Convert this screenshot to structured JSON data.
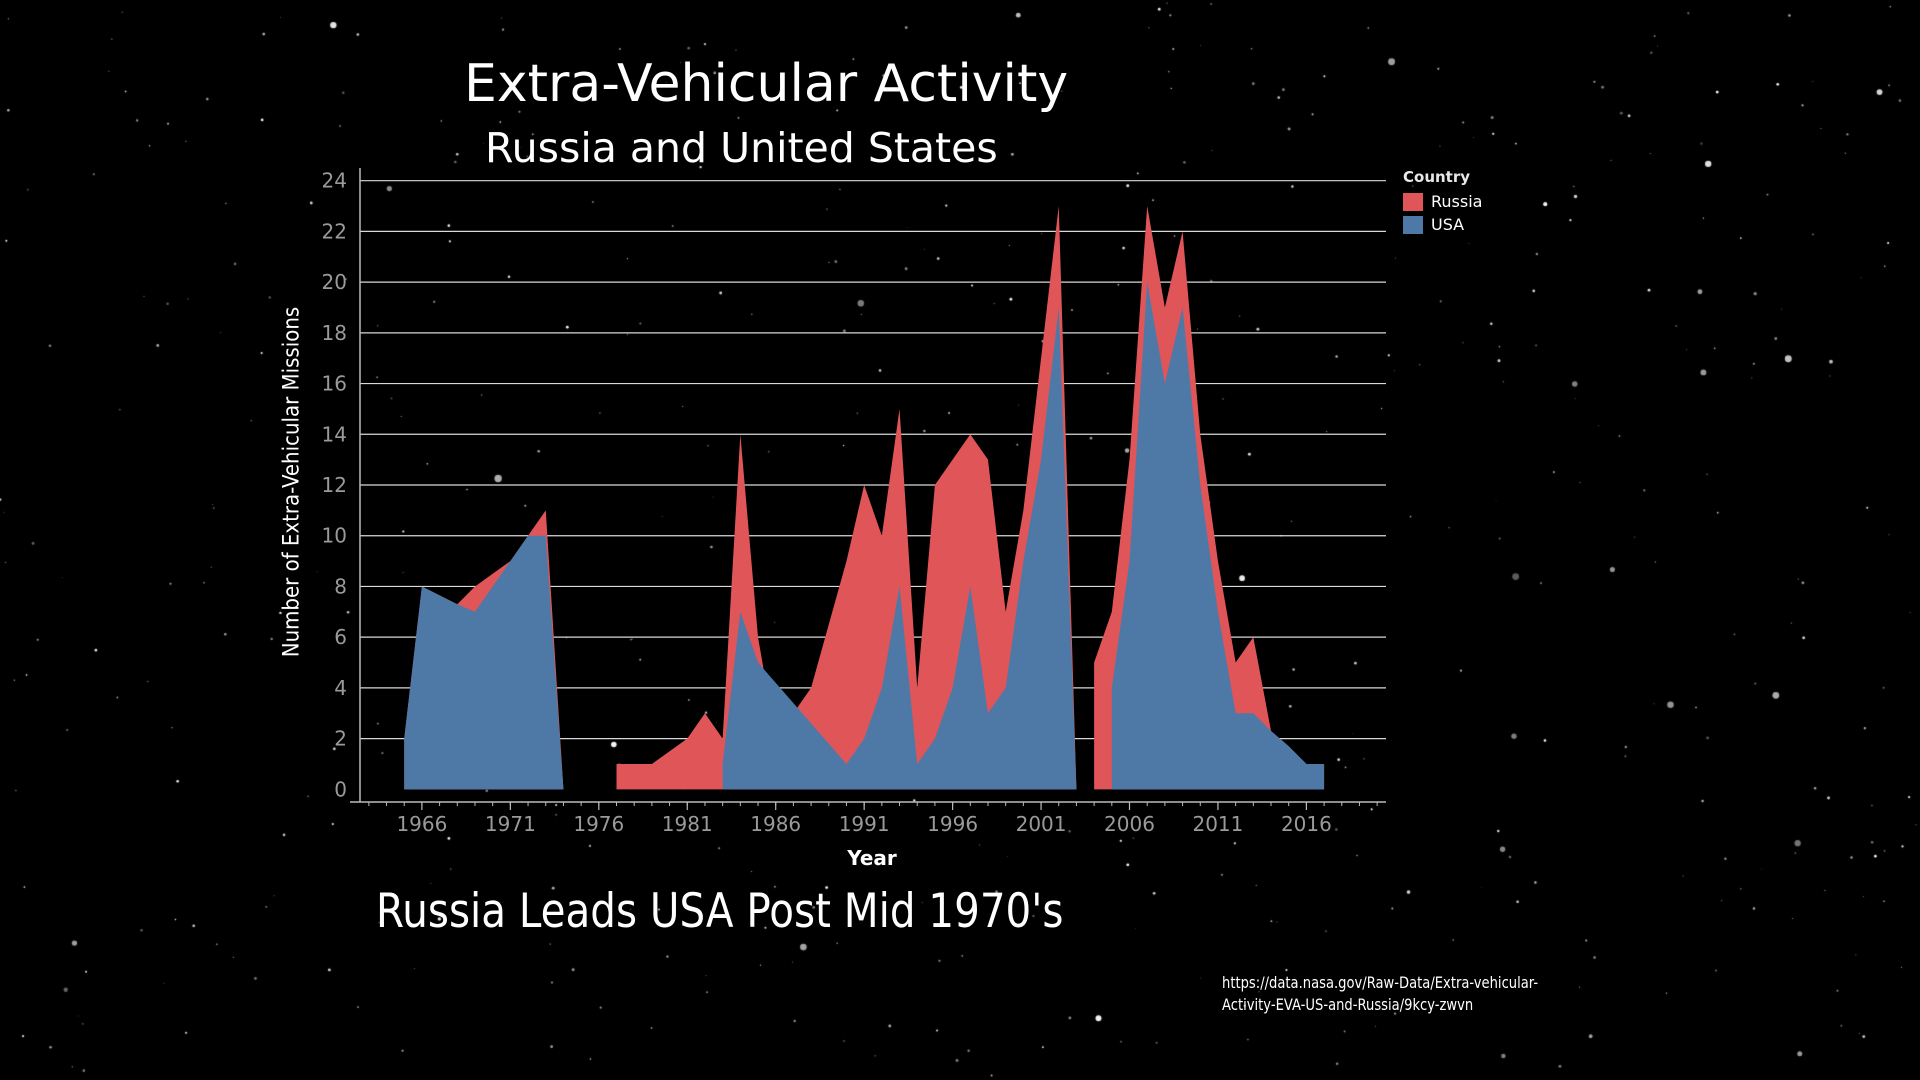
{
  "headline": "Russia Leads USA Post Mid 1970's",
  "source_line1": "https://data.nasa.gov/Raw-Data/Extra-vehicular-",
  "source_line2": "Activity-EVA-US-and-Russia/9kcy-zwvn",
  "colors": {
    "background": "#000000",
    "russia": "#e05558",
    "usa": "#4e79a7",
    "grid": "#ffffff"
  },
  "chart_data": {
    "type": "area",
    "stacked": true,
    "title": "Extra-Vehicular Activity",
    "subtitle": "Russia and United States",
    "xlabel": "Year",
    "ylabel": "Number of Extra-Vehicular Missions",
    "xlim": [
      1962.5,
      2020.5
    ],
    "ylim": [
      -0.5,
      24.5
    ],
    "x_ticks": [
      1966,
      1971,
      1976,
      1981,
      1986,
      1991,
      1996,
      2001,
      2006,
      2011,
      2016
    ],
    "y_ticks": [
      0,
      2,
      4,
      6,
      8,
      10,
      12,
      14,
      16,
      18,
      20,
      22,
      24
    ],
    "grid": "horizontal",
    "legend": {
      "title": "Country",
      "position": "top-right"
    },
    "series": [
      {
        "name": "USA",
        "points": [
          [
            1965,
            2
          ],
          [
            1966,
            8
          ],
          [
            1968,
            7.3
          ],
          [
            1969,
            7
          ],
          [
            1971,
            9
          ],
          [
            1972,
            10
          ],
          [
            1973,
            10
          ],
          [
            1974,
            0
          ],
          [
            1983,
            1
          ],
          [
            1984,
            7
          ],
          [
            1985,
            5
          ],
          [
            1990,
            1
          ],
          [
            1991,
            2
          ],
          [
            1992,
            4
          ],
          [
            1993,
            8
          ],
          [
            1994,
            1
          ],
          [
            1995,
            2
          ],
          [
            1996,
            4
          ],
          [
            1997,
            8
          ],
          [
            1998,
            3
          ],
          [
            1999,
            4
          ],
          [
            2000,
            9
          ],
          [
            2001,
            13
          ],
          [
            2002,
            19
          ],
          [
            2003,
            0
          ],
          [
            2005,
            4
          ],
          [
            2006,
            9
          ],
          [
            2007,
            20
          ],
          [
            2008,
            16
          ],
          [
            2009,
            19
          ],
          [
            2010,
            12
          ],
          [
            2011,
            7
          ],
          [
            2012,
            3
          ],
          [
            2013,
            3
          ],
          [
            2014,
            2.3
          ],
          [
            2015,
            1.7
          ],
          [
            2016,
            1
          ],
          [
            2017,
            1
          ]
        ]
      },
      {
        "name": "Russia",
        "points": [
          [
            1965,
            2
          ],
          [
            1966,
            8
          ],
          [
            1968,
            7.3
          ],
          [
            1969,
            8
          ],
          [
            1971,
            9
          ],
          [
            1972,
            10
          ],
          [
            1973,
            11
          ],
          [
            1974,
            0
          ],
          [
            1977,
            1
          ],
          [
            1979,
            1
          ],
          [
            1981,
            2
          ],
          [
            1982,
            3
          ],
          [
            1983,
            2
          ],
          [
            1984,
            14
          ],
          [
            1985,
            6
          ],
          [
            1986,
            2
          ],
          [
            1988,
            4
          ],
          [
            1990,
            9
          ],
          [
            1991,
            12
          ],
          [
            1992,
            10
          ],
          [
            1993,
            15
          ],
          [
            1994,
            4
          ],
          [
            1995,
            12
          ],
          [
            1996,
            13
          ],
          [
            1997,
            14
          ],
          [
            1998,
            13
          ],
          [
            1999,
            7
          ],
          [
            2000,
            11
          ],
          [
            2001,
            17
          ],
          [
            2002,
            23
          ],
          [
            2003,
            0
          ],
          [
            2004,
            5
          ],
          [
            2005,
            7
          ],
          [
            2006,
            13
          ],
          [
            2007,
            23
          ],
          [
            2008,
            19
          ],
          [
            2009,
            22
          ],
          [
            2010,
            14
          ],
          [
            2011,
            9
          ],
          [
            2012,
            5
          ],
          [
            2013,
            6
          ],
          [
            2014,
            2.3
          ],
          [
            2015,
            1.7
          ],
          [
            2016,
            1
          ],
          [
            2017,
            1
          ]
        ]
      }
    ]
  }
}
